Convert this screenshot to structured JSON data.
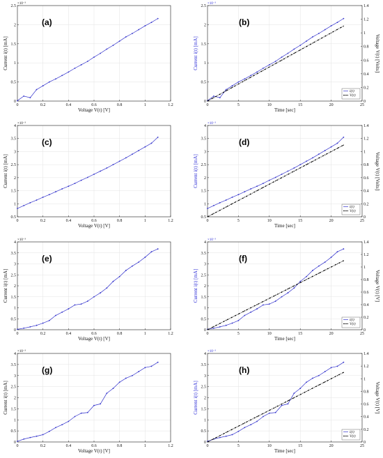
{
  "chart_data": [
    {
      "type": "line",
      "panel": "(a)",
      "xlabel": "Voltage V(t) [V]",
      "ylabel": "Current i(t) [mA]",
      "y_multiplier": "×10⁻³",
      "xlim": [
        0,
        1.2
      ],
      "ylim": [
        0,
        2.5
      ],
      "xticks": [
        "0",
        "0.2",
        "0.4",
        "0.6",
        "0.8",
        "1",
        "1.2"
      ],
      "yticks": [
        "0",
        "0.5",
        "1",
        "1.5",
        "2",
        "2.5"
      ],
      "series": [
        {
          "x": [
            0,
            0.05,
            0.1,
            0.15,
            0.2,
            0.25,
            0.3,
            0.35,
            0.4,
            0.45,
            0.5,
            0.55,
            0.6,
            0.65,
            0.7,
            0.75,
            0.8,
            0.85,
            0.9,
            0.95,
            1,
            1.05,
            1.1
          ],
          "y": [
            0.01,
            0.13,
            0.09,
            0.3,
            0.4,
            0.5,
            0.58,
            0.67,
            0.76,
            0.86,
            0.95,
            1.04,
            1.15,
            1.25,
            1.36,
            1.46,
            1.57,
            1.68,
            1.77,
            1.87,
            1.97,
            2.06,
            2.16
          ]
        }
      ]
    },
    {
      "type": "line",
      "panel": "(b)",
      "xlabel": "Time [sec]",
      "ylabel": "Current i(t) [mA]",
      "y2label": "Voltage V(t) [Volts]",
      "y_multiplier": "×10⁻³",
      "xlim": [
        0,
        25
      ],
      "ylim": [
        0,
        2.5
      ],
      "y2lim": [
        0,
        1.4
      ],
      "xticks": [
        "0",
        "5",
        "10",
        "15",
        "20",
        "25"
      ],
      "yticks": [
        "0",
        "0.5",
        "1",
        "1.5",
        "2",
        "2.5"
      ],
      "y2ticks": [
        "0",
        "0.2",
        "0.4",
        "0.6",
        "0.8",
        "1",
        "1.2",
        "1.4"
      ],
      "legend": [
        "i(t)",
        "V(t)"
      ],
      "series": [
        {
          "name": "i(t)",
          "axis": "left",
          "x": [
            0,
            1,
            2,
            3,
            4,
            5,
            6,
            7,
            8,
            9,
            10,
            11,
            12,
            13,
            14,
            15,
            16,
            17,
            18,
            19,
            20,
            21,
            22
          ],
          "y": [
            0.01,
            0.13,
            0.09,
            0.3,
            0.4,
            0.5,
            0.58,
            0.67,
            0.76,
            0.86,
            0.95,
            1.04,
            1.15,
            1.25,
            1.36,
            1.46,
            1.57,
            1.68,
            1.77,
            1.87,
            1.97,
            2.06,
            2.16
          ]
        },
        {
          "name": "V(t)",
          "axis": "right",
          "x": [
            0,
            1,
            2,
            3,
            4,
            5,
            6,
            7,
            8,
            9,
            10,
            11,
            12,
            13,
            14,
            15,
            16,
            17,
            18,
            19,
            20,
            21,
            22
          ],
          "y": [
            0,
            0.05,
            0.1,
            0.15,
            0.2,
            0.25,
            0.3,
            0.35,
            0.4,
            0.45,
            0.5,
            0.55,
            0.6,
            0.65,
            0.7,
            0.75,
            0.8,
            0.85,
            0.9,
            0.95,
            1,
            1.05,
            1.1
          ]
        }
      ]
    },
    {
      "type": "line",
      "panel": "(c)",
      "xlabel": "Voltage V(t) [V]",
      "ylabel": "Current i(t) [mA]",
      "y_multiplier": "×10⁻³",
      "xlim": [
        0,
        1.2
      ],
      "ylim": [
        0.5,
        4
      ],
      "xticks": [
        "0",
        "0.2",
        "0.4",
        "0.6",
        "0.8",
        "1",
        "1.2"
      ],
      "yticks": [
        "0.5",
        "1",
        "1.5",
        "2",
        "2.5",
        "3",
        "3.5",
        "4"
      ],
      "series": [
        {
          "x": [
            0,
            0.05,
            0.1,
            0.15,
            0.2,
            0.25,
            0.3,
            0.35,
            0.4,
            0.45,
            0.5,
            0.55,
            0.6,
            0.65,
            0.7,
            0.75,
            0.8,
            0.85,
            0.9,
            0.95,
            1,
            1.05,
            1.1
          ],
          "y": [
            0.82,
            0.93,
            1.04,
            1.14,
            1.25,
            1.35,
            1.46,
            1.57,
            1.67,
            1.78,
            1.9,
            2.01,
            2.13,
            2.25,
            2.37,
            2.5,
            2.63,
            2.76,
            2.9,
            3.04,
            3.18,
            3.32,
            3.55
          ]
        }
      ]
    },
    {
      "type": "line",
      "panel": "(d)",
      "xlabel": "Time [sec]",
      "ylabel": "Current i(t) [mA]",
      "y2label": "Voltage V(t) [Volts]",
      "y_multiplier": "×10⁻³",
      "xlim": [
        0,
        25
      ],
      "ylim": [
        0.5,
        4
      ],
      "y2lim": [
        0,
        1.4
      ],
      "xticks": [
        "0",
        "5",
        "10",
        "15",
        "20",
        "25"
      ],
      "yticks": [
        "0.5",
        "1",
        "1.5",
        "2",
        "2.5",
        "3",
        "3.5",
        "4"
      ],
      "y2ticks": [
        "0",
        "0.2",
        "0.4",
        "0.6",
        "0.8",
        "1",
        "1.2",
        "1.4"
      ],
      "legend": [
        "i(t)",
        "V(t)"
      ],
      "series": [
        {
          "name": "i(t)",
          "axis": "left",
          "x": [
            0,
            1,
            2,
            3,
            4,
            5,
            6,
            7,
            8,
            9,
            10,
            11,
            12,
            13,
            14,
            15,
            16,
            17,
            18,
            19,
            20,
            21,
            22
          ],
          "y": [
            0.82,
            0.93,
            1.04,
            1.14,
            1.25,
            1.35,
            1.46,
            1.57,
            1.67,
            1.78,
            1.9,
            2.01,
            2.13,
            2.25,
            2.37,
            2.5,
            2.63,
            2.76,
            2.9,
            3.04,
            3.18,
            3.32,
            3.55
          ]
        },
        {
          "name": "V(t)",
          "axis": "right",
          "x": [
            0,
            1,
            2,
            3,
            4,
            5,
            6,
            7,
            8,
            9,
            10,
            11,
            12,
            13,
            14,
            15,
            16,
            17,
            18,
            19,
            20,
            21,
            22
          ],
          "y": [
            0,
            0.05,
            0.1,
            0.15,
            0.2,
            0.25,
            0.3,
            0.35,
            0.4,
            0.45,
            0.5,
            0.55,
            0.6,
            0.65,
            0.7,
            0.75,
            0.8,
            0.85,
            0.9,
            0.95,
            1,
            1.05,
            1.1
          ]
        }
      ]
    },
    {
      "type": "line",
      "panel": "(e)",
      "xlabel": "Voltage V(t) [V]",
      "ylabel": "Current i(t) [mA]",
      "y_multiplier": "×10⁻³",
      "xlim": [
        0,
        1.2
      ],
      "ylim": [
        0,
        4
      ],
      "xticks": [
        "0",
        "0.2",
        "0.4",
        "0.6",
        "0.8",
        "1",
        "1.2"
      ],
      "yticks": [
        "0",
        "0.5",
        "1",
        "1.5",
        "2",
        "2.5",
        "3",
        "3.5",
        "4"
      ],
      "series": [
        {
          "x": [
            0,
            0.05,
            0.1,
            0.15,
            0.2,
            0.25,
            0.3,
            0.35,
            0.4,
            0.45,
            0.5,
            0.55,
            0.6,
            0.65,
            0.7,
            0.75,
            0.8,
            0.85,
            0.9,
            0.95,
            1,
            1.05,
            1.1
          ],
          "y": [
            0.02,
            0.07,
            0.13,
            0.2,
            0.3,
            0.42,
            0.65,
            0.8,
            0.95,
            1.13,
            1.17,
            1.3,
            1.5,
            1.68,
            1.9,
            2.2,
            2.42,
            2.7,
            2.9,
            3.08,
            3.3,
            3.55,
            3.68
          ]
        }
      ]
    },
    {
      "type": "line",
      "panel": "(f)",
      "xlabel": "Time [sec]",
      "ylabel": "Current i(t) [mA]",
      "y2label": "Voltage V(t) [V]",
      "y_multiplier": "×10⁻³",
      "xlim": [
        0,
        25
      ],
      "ylim": [
        0,
        4
      ],
      "y2lim": [
        0,
        1.4
      ],
      "xticks": [
        "0",
        "5",
        "10",
        "15",
        "20",
        "25"
      ],
      "yticks": [
        "0",
        "0.5",
        "1",
        "1.5",
        "2",
        "2.5",
        "3",
        "3.5",
        "4"
      ],
      "y2ticks": [
        "0",
        "0.2",
        "0.4",
        "0.6",
        "0.8",
        "1",
        "1.2",
        "1.4"
      ],
      "legend": [
        "i(t)",
        "V(t)"
      ],
      "series": [
        {
          "name": "i(t)",
          "axis": "left",
          "x": [
            0,
            1,
            2,
            3,
            4,
            5,
            6,
            7,
            8,
            9,
            10,
            11,
            12,
            13,
            14,
            15,
            16,
            17,
            18,
            19,
            20,
            21,
            22
          ],
          "y": [
            0.02,
            0.07,
            0.13,
            0.2,
            0.3,
            0.42,
            0.65,
            0.8,
            0.95,
            1.13,
            1.17,
            1.3,
            1.5,
            1.68,
            1.9,
            2.2,
            2.42,
            2.7,
            2.9,
            3.08,
            3.3,
            3.55,
            3.68
          ]
        },
        {
          "name": "V(t)",
          "axis": "right",
          "x": [
            0,
            1,
            2,
            3,
            4,
            5,
            6,
            7,
            8,
            9,
            10,
            11,
            12,
            13,
            14,
            15,
            16,
            17,
            18,
            19,
            20,
            21,
            22
          ],
          "y": [
            0,
            0.05,
            0.1,
            0.15,
            0.2,
            0.25,
            0.3,
            0.35,
            0.4,
            0.45,
            0.5,
            0.55,
            0.6,
            0.65,
            0.7,
            0.75,
            0.8,
            0.85,
            0.9,
            0.95,
            1,
            1.05,
            1.1
          ]
        }
      ]
    },
    {
      "type": "line",
      "panel": "(g)",
      "xlabel": "Voltage V(t) [V]",
      "ylabel": "Current i(t) [mA]",
      "y_multiplier": "×10⁻³",
      "xlim": [
        0,
        1.2
      ],
      "ylim": [
        0,
        4
      ],
      "xticks": [
        "0",
        "0.2",
        "0.4",
        "0.6",
        "0.8",
        "1",
        "1.2"
      ],
      "yticks": [
        "0",
        "0.5",
        "1",
        "1.5",
        "2",
        "2.5",
        "3",
        "3.5",
        "4"
      ],
      "series": [
        {
          "x": [
            0,
            0.05,
            0.1,
            0.15,
            0.2,
            0.25,
            0.3,
            0.35,
            0.4,
            0.45,
            0.5,
            0.55,
            0.6,
            0.65,
            0.7,
            0.75,
            0.8,
            0.85,
            0.9,
            0.95,
            1,
            1.05,
            1.1
          ],
          "y": [
            0.03,
            0.13,
            0.2,
            0.26,
            0.33,
            0.48,
            0.65,
            0.78,
            0.93,
            1.15,
            1.3,
            1.33,
            1.65,
            1.72,
            2.2,
            2.42,
            2.7,
            2.88,
            3.0,
            3.18,
            3.36,
            3.42,
            3.6
          ]
        }
      ]
    },
    {
      "type": "line",
      "panel": "(h)",
      "xlabel": "Time [sec]",
      "ylabel": "Current i(t) [mA]",
      "y2label": "Voltage V(t) [V]",
      "y_multiplier": "×10⁻³",
      "xlim": [
        0,
        25
      ],
      "ylim": [
        0,
        4
      ],
      "y2lim": [
        0,
        1.4
      ],
      "xticks": [
        "0",
        "5",
        "10",
        "15",
        "20",
        "25"
      ],
      "yticks": [
        "0",
        "0.5",
        "1",
        "1.5",
        "2",
        "2.5",
        "3",
        "3.5",
        "4"
      ],
      "y2ticks": [
        "0",
        "0.2",
        "0.4",
        "0.6",
        "0.8",
        "1",
        "1.2",
        "1.4"
      ],
      "legend": [
        "i(t)",
        "V(t)"
      ],
      "series": [
        {
          "name": "i(t)",
          "axis": "left",
          "x": [
            0,
            1,
            2,
            3,
            4,
            5,
            6,
            7,
            8,
            9,
            10,
            11,
            12,
            13,
            14,
            15,
            16,
            17,
            18,
            19,
            20,
            21,
            22
          ],
          "y": [
            0.03,
            0.13,
            0.2,
            0.26,
            0.33,
            0.48,
            0.65,
            0.78,
            0.93,
            1.15,
            1.3,
            1.33,
            1.65,
            1.72,
            2.2,
            2.42,
            2.7,
            2.88,
            3.0,
            3.18,
            3.36,
            3.42,
            3.6
          ]
        },
        {
          "name": "V(t)",
          "axis": "right",
          "x": [
            0,
            1,
            2,
            3,
            4,
            5,
            6,
            7,
            8,
            9,
            10,
            11,
            12,
            13,
            14,
            15,
            16,
            17,
            18,
            19,
            20,
            21,
            22
          ],
          "y": [
            0,
            0.05,
            0.1,
            0.15,
            0.2,
            0.25,
            0.3,
            0.35,
            0.4,
            0.45,
            0.5,
            0.55,
            0.6,
            0.65,
            0.7,
            0.75,
            0.8,
            0.85,
            0.9,
            0.95,
            1,
            1.05,
            1.1
          ]
        }
      ]
    }
  ],
  "colors": {
    "current": "#3333cc",
    "voltage": "#000000",
    "grid": "#e3e3e3",
    "axis": "#222222"
  }
}
